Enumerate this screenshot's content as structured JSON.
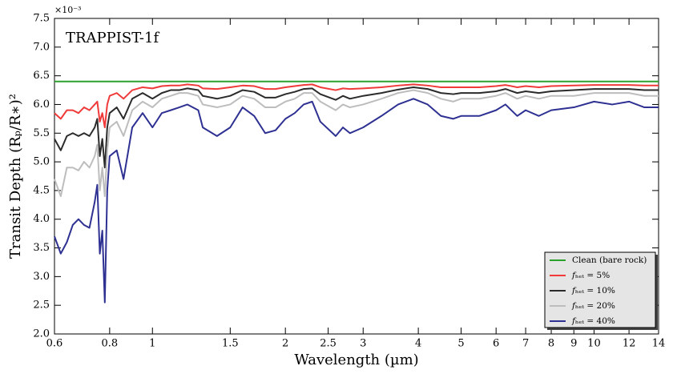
{
  "chart_data": {
    "type": "line",
    "annotation": "TRAPPIST-1f",
    "x_label": "Wavelength (µm)",
    "y_label": "Transit Depth (Rₚ/R∗)²",
    "y_offset_label": "×10⁻³",
    "xscale": "log",
    "xlim": [
      0.6,
      14
    ],
    "ylim": [
      2.0,
      7.5
    ],
    "xticks": [
      0.6,
      0.8,
      1,
      1.5,
      2,
      2.5,
      3,
      4,
      5,
      6,
      7,
      8,
      9,
      10,
      12,
      14
    ],
    "yticks": [
      {
        "value": 2,
        "label": "2.0"
      },
      2.5,
      {
        "value": 3,
        "label": "3.0"
      },
      3.5,
      {
        "value": 4,
        "label": "4.0"
      },
      4.5,
      {
        "value": 5,
        "label": "5.0"
      },
      5.5,
      {
        "value": 6,
        "label": "6.0"
      },
      6.5,
      {
        "value": 7,
        "label": "7.0"
      },
      7.5
    ],
    "legend": "lower right",
    "x": [
      0.6,
      0.62,
      0.64,
      0.66,
      0.68,
      0.7,
      0.72,
      0.74,
      0.75,
      0.76,
      0.77,
      0.78,
      0.79,
      0.8,
      0.83,
      0.86,
      0.9,
      0.95,
      1.0,
      1.05,
      1.1,
      1.15,
      1.2,
      1.27,
      1.3,
      1.4,
      1.5,
      1.6,
      1.7,
      1.8,
      1.9,
      2.0,
      2.1,
      2.2,
      2.3,
      2.4,
      2.6,
      2.7,
      2.8,
      3.0,
      3.3,
      3.6,
      3.9,
      4.2,
      4.5,
      4.8,
      5.0,
      5.5,
      6.0,
      6.3,
      6.7,
      7.0,
      7.5,
      8.0,
      9.0,
      10,
      11,
      12,
      13,
      14
    ],
    "series": [
      {
        "name": "Clean (bare rock)",
        "color": "#2ca02c",
        "values": [
          6.4,
          6.4,
          6.4,
          6.4,
          6.4,
          6.4,
          6.4,
          6.4,
          6.4,
          6.4,
          6.4,
          6.4,
          6.4,
          6.4,
          6.4,
          6.4,
          6.4,
          6.4,
          6.4,
          6.4,
          6.4,
          6.4,
          6.4,
          6.4,
          6.4,
          6.4,
          6.4,
          6.4,
          6.4,
          6.4,
          6.4,
          6.4,
          6.4,
          6.4,
          6.4,
          6.4,
          6.4,
          6.4,
          6.4,
          6.4,
          6.4,
          6.4,
          6.4,
          6.4,
          6.4,
          6.4,
          6.4,
          6.4,
          6.4,
          6.4,
          6.4,
          6.4,
          6.4,
          6.4,
          6.4,
          6.4,
          6.4,
          6.4,
          6.4,
          6.4
        ]
      },
      {
        "name": "𝑓ₕₑₜ = 5%",
        "color": "#f03a3a",
        "values": [
          5.85,
          5.75,
          5.9,
          5.9,
          5.85,
          5.95,
          5.9,
          6.0,
          6.05,
          5.7,
          5.85,
          5.6,
          6.0,
          6.15,
          6.2,
          6.1,
          6.25,
          6.3,
          6.28,
          6.32,
          6.33,
          6.33,
          6.35,
          6.33,
          6.28,
          6.27,
          6.3,
          6.33,
          6.32,
          6.27,
          6.27,
          6.3,
          6.32,
          6.34,
          6.35,
          6.3,
          6.25,
          6.28,
          6.27,
          6.28,
          6.3,
          6.33,
          6.35,
          6.33,
          6.3,
          6.3,
          6.3,
          6.3,
          6.32,
          6.34,
          6.3,
          6.32,
          6.3,
          6.32,
          6.33,
          6.34,
          6.34,
          6.34,
          6.33,
          6.33
        ]
      },
      {
        "name": "𝑓ₕₑₜ = 10%",
        "color": "#2b2b2b",
        "values": [
          5.4,
          5.2,
          5.45,
          5.5,
          5.45,
          5.5,
          5.45,
          5.6,
          5.75,
          5.1,
          5.4,
          4.9,
          5.6,
          5.85,
          5.95,
          5.75,
          6.1,
          6.2,
          6.1,
          6.2,
          6.25,
          6.25,
          6.28,
          6.25,
          6.15,
          6.1,
          6.15,
          6.25,
          6.22,
          6.12,
          6.12,
          6.18,
          6.22,
          6.27,
          6.28,
          6.18,
          6.08,
          6.15,
          6.1,
          6.15,
          6.2,
          6.26,
          6.3,
          6.27,
          6.2,
          6.18,
          6.2,
          6.2,
          6.23,
          6.27,
          6.2,
          6.23,
          6.2,
          6.23,
          6.25,
          6.27,
          6.27,
          6.27,
          6.25,
          6.25
        ]
      },
      {
        "name": "𝑓ₕₑₜ = 20%",
        "color": "#bdbdbd",
        "values": [
          4.7,
          4.4,
          4.9,
          4.9,
          4.85,
          5.0,
          4.9,
          5.1,
          5.3,
          4.5,
          4.9,
          4.4,
          5.2,
          5.6,
          5.7,
          5.45,
          5.9,
          6.05,
          5.95,
          6.1,
          6.15,
          6.2,
          6.2,
          6.15,
          6.0,
          5.95,
          6.0,
          6.15,
          6.1,
          5.95,
          5.95,
          6.05,
          6.1,
          6.2,
          6.2,
          6.05,
          5.9,
          6.0,
          5.95,
          6.0,
          6.1,
          6.2,
          6.25,
          6.2,
          6.1,
          6.05,
          6.1,
          6.1,
          6.15,
          6.2,
          6.1,
          6.15,
          6.1,
          6.15,
          6.15,
          6.2,
          6.2,
          6.2,
          6.15,
          6.15
        ]
      },
      {
        "name": "𝑓ₕₑₜ = 40%",
        "color": "#2e3192",
        "values": [
          3.7,
          3.4,
          3.6,
          3.9,
          4.0,
          3.9,
          3.85,
          4.3,
          4.6,
          3.4,
          3.8,
          2.55,
          4.5,
          5.1,
          5.2,
          4.7,
          5.6,
          5.85,
          5.6,
          5.85,
          5.9,
          5.95,
          6.0,
          5.9,
          5.6,
          5.45,
          5.6,
          5.95,
          5.8,
          5.5,
          5.55,
          5.75,
          5.85,
          6.0,
          6.05,
          5.7,
          5.45,
          5.6,
          5.5,
          5.6,
          5.8,
          6.0,
          6.1,
          6.0,
          5.8,
          5.75,
          5.8,
          5.8,
          5.9,
          6.0,
          5.8,
          5.9,
          5.8,
          5.9,
          5.95,
          6.05,
          6.0,
          6.05,
          5.95,
          5.95
        ]
      }
    ]
  }
}
